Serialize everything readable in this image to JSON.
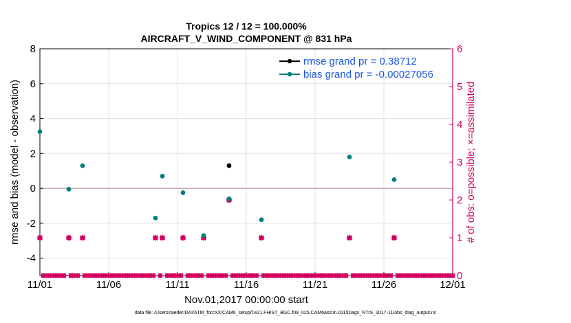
{
  "chart_data": {
    "type": "scatter",
    "title_line1": "Tropics 12 / 12 = 100.000%",
    "title_line2": "AIRCRAFT_V_WIND_COMPONENT @ 831 hPa",
    "xlabel": "Nov.01,2017 00:00:00 start",
    "ylabel_left": "rmse and bias (model - observation)",
    "ylabel_right": "# of obs: o=possible; ×=assimilated",
    "footnote": "data file: /Users/raeder/DAI/ATM_forcXX/CAM6_setup/f.e21.FHIST_BGC.f09_025.CAM6assim.011/Diags_NTrS_2017-11/obs_diag_output.nc",
    "x_ticks": [
      0,
      5,
      10,
      15,
      20,
      25,
      30
    ],
    "x_tick_labels": [
      "11/01",
      "11/06",
      "11/11",
      "11/16",
      "11/21",
      "11/26",
      "12/01"
    ],
    "xlim": [
      0,
      30
    ],
    "ylim_left": [
      -5,
      8
    ],
    "y_ticks_left": [
      -4,
      -2,
      0,
      2,
      4,
      6,
      8
    ],
    "ylim_right": [
      0,
      6
    ],
    "y_ticks_right": [
      0,
      1,
      2,
      3,
      4,
      5,
      6
    ],
    "zero_line": 0,
    "colors": {
      "rmse": "#000000",
      "bias": "#008080",
      "obs": "#d1005e",
      "legend_text": "#1a55e0",
      "zero_line": "#c0a0b0",
      "grid": "#e8dde2"
    },
    "legend": [
      {
        "label": "rmse grand pr = 0.38712",
        "series": "rmse"
      },
      {
        "label": "bias grand pr = -0.00027056",
        "series": "bias"
      }
    ],
    "series": [
      {
        "name": "rmse",
        "axis": "left",
        "points": [
          [
            13.75,
            1.3
          ]
        ]
      },
      {
        "name": "bias",
        "axis": "left",
        "points": [
          [
            0,
            3.25
          ],
          [
            2.1,
            -0.05
          ],
          [
            3.1,
            1.3
          ],
          [
            8.4,
            -1.7
          ],
          [
            8.9,
            0.7
          ],
          [
            10.4,
            -0.25
          ],
          [
            11.9,
            -2.7
          ],
          [
            13.75,
            -0.6
          ],
          [
            16.1,
            -1.8
          ],
          [
            22.5,
            1.8
          ],
          [
            25.75,
            0.5
          ]
        ]
      },
      {
        "name": "obs",
        "axis": "right",
        "description_values": "count per time step",
        "points": [
          [
            0,
            1
          ],
          [
            2.1,
            1
          ],
          [
            3.1,
            1
          ],
          [
            8.4,
            1
          ],
          [
            8.9,
            1
          ],
          [
            10.4,
            1
          ],
          [
            11.9,
            1
          ],
          [
            13.75,
            2
          ],
          [
            16.1,
            1
          ],
          [
            22.5,
            1
          ],
          [
            25.75,
            1
          ]
        ]
      }
    ]
  }
}
